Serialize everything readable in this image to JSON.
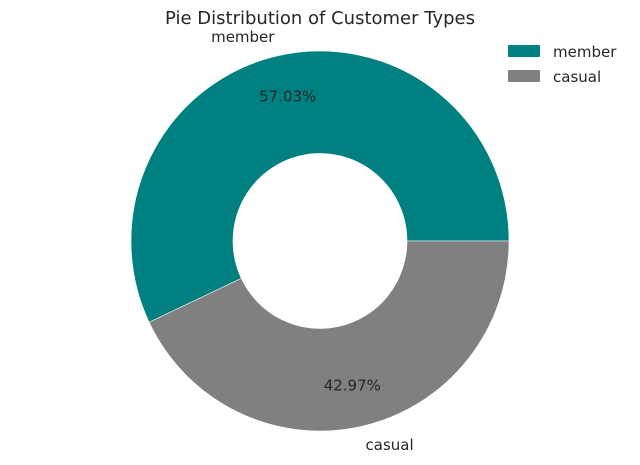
{
  "chart_data": {
    "type": "pie",
    "variant": "donut",
    "title": "Pie Distribution of Customer Types",
    "slices": [
      {
        "label": "member",
        "percent_label": "57.03%",
        "value": 57.03,
        "color": "#008080"
      },
      {
        "label": "casual",
        "percent_label": "42.97%",
        "value": 42.97,
        "color": "#808080"
      }
    ],
    "legend": {
      "placement": "top-right",
      "entries": [
        "member",
        "casual"
      ]
    },
    "background": "#ffffff"
  }
}
